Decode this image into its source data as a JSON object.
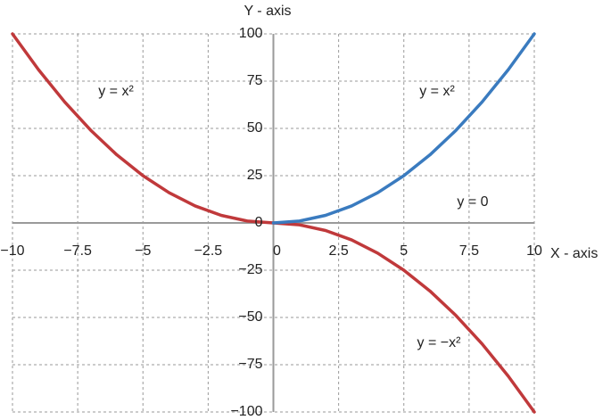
{
  "chart_data": {
    "type": "line",
    "xlabel": "X - axis",
    "ylabel": "Y - axis",
    "xlim": [
      -10,
      10
    ],
    "ylim": [
      -100,
      100
    ],
    "xticks": [
      {
        "value": -10,
        "label": "−10"
      },
      {
        "value": -7.5,
        "label": "−7.5"
      },
      {
        "value": -5,
        "label": "−5"
      },
      {
        "value": -2.5,
        "label": "−2.5"
      },
      0,
      2.5,
      5,
      7.5,
      10
    ],
    "yticks": [
      {
        "value": -100,
        "label": "−100"
      },
      {
        "value": -75,
        "label": "−75"
      },
      {
        "value": -50,
        "label": "−50"
      },
      {
        "value": -25,
        "label": "−25"
      },
      0,
      25,
      50,
      75,
      100
    ],
    "grid": true,
    "series": [
      {
        "color": "#c0393b",
        "x": [
          -10,
          -9,
          -8,
          -7,
          -6,
          -5,
          -4,
          -3,
          -2,
          -1,
          0,
          1,
          2,
          3,
          4,
          5,
          6,
          7,
          8,
          9,
          10
        ],
        "values": [
          100,
          81,
          64,
          49,
          36,
          25,
          16,
          9,
          4,
          1,
          0,
          -1,
          -4,
          -9,
          -16,
          -25,
          -36,
          -49,
          -64,
          -81,
          -100
        ]
      },
      {
        "color": "#3a7bbf",
        "x": [
          0,
          1,
          2,
          3,
          4,
          5,
          6,
          7,
          8,
          9,
          10
        ],
        "values": [
          0,
          1,
          4,
          9,
          16,
          25,
          36,
          49,
          64,
          81,
          100
        ]
      }
    ],
    "annotations": [
      "y = x²",
      "y = x²",
      "y = 0",
      "y = −x²"
    ]
  }
}
